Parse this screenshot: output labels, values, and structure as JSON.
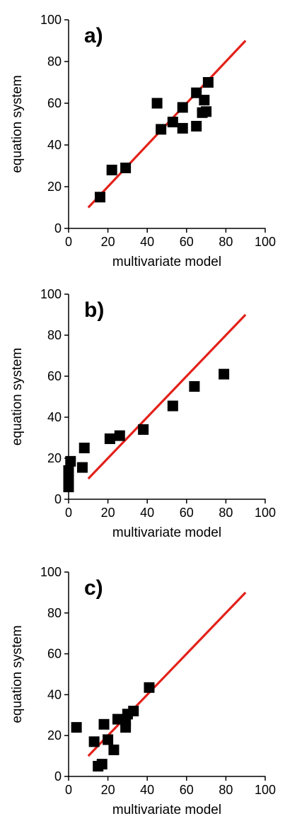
{
  "chart_data": [
    {
      "type": "scatter",
      "panel_label": "a)",
      "xlabel": "multivariate model",
      "ylabel": "equation system",
      "xlim": [
        0,
        100
      ],
      "ylim": [
        0,
        100
      ],
      "xticks": [
        "0",
        "20",
        "40",
        "60",
        "80",
        "100"
      ],
      "yticks": [
        "0",
        "20",
        "40",
        "60",
        "80",
        "100"
      ],
      "grid": false,
      "series": [
        {
          "marker": "square",
          "color": "#000000",
          "points": [
            [
              16,
              15
            ],
            [
              22,
              28
            ],
            [
              29,
              29
            ],
            [
              45,
              60
            ],
            [
              47,
              47.5
            ],
            [
              53,
              51
            ],
            [
              58,
              48
            ],
            [
              58,
              58
            ],
            [
              65,
              49
            ],
            [
              65,
              65
            ],
            [
              68,
              55.5
            ],
            [
              69,
              61.5
            ],
            [
              70,
              56
            ],
            [
              71,
              70
            ]
          ]
        }
      ],
      "reference_line": {
        "color": "#e32119",
        "from": [
          10,
          10
        ],
        "to": [
          90,
          90
        ]
      }
    },
    {
      "type": "scatter",
      "panel_label": "b)",
      "xlabel": "multivariate model",
      "ylabel": "equation system",
      "xlim": [
        0,
        100
      ],
      "ylim": [
        0,
        100
      ],
      "xticks": [
        "0",
        "20",
        "40",
        "60",
        "80",
        "100"
      ],
      "yticks": [
        "0",
        "20",
        "40",
        "60",
        "80",
        "100"
      ],
      "grid": false,
      "series": [
        {
          "marker": "square",
          "color": "#000000",
          "points": [
            [
              0,
              6
            ],
            [
              0,
              9
            ],
            [
              0,
              11
            ],
            [
              0,
              14
            ],
            [
              1,
              18.5
            ],
            [
              7,
              15.5
            ],
            [
              8,
              25
            ],
            [
              21,
              29.5
            ],
            [
              26,
              31
            ],
            [
              38,
              34
            ],
            [
              53,
              45.5
            ],
            [
              64,
              55
            ],
            [
              79,
              61
            ]
          ]
        }
      ],
      "reference_line": {
        "color": "#e32119",
        "from": [
          10,
          10
        ],
        "to": [
          90,
          90
        ]
      }
    },
    {
      "type": "scatter",
      "panel_label": "c)",
      "xlabel": "multivariate model",
      "ylabel": "equation system",
      "xlim": [
        0,
        100
      ],
      "ylim": [
        0,
        100
      ],
      "xticks": [
        "0",
        "20",
        "40",
        "60",
        "80",
        "100"
      ],
      "yticks": [
        "0",
        "20",
        "40",
        "60",
        "80",
        "100"
      ],
      "grid": false,
      "series": [
        {
          "marker": "square",
          "color": "#000000",
          "points": [
            [
              4,
              24
            ],
            [
              13,
              17
            ],
            [
              15,
              5
            ],
            [
              17,
              6
            ],
            [
              18,
              25.5
            ],
            [
              20,
              18
            ],
            [
              23,
              13
            ],
            [
              25,
              28
            ],
            [
              29,
              24
            ],
            [
              29,
              27
            ],
            [
              30,
              30.5
            ],
            [
              33,
              32
            ],
            [
              41,
              43.5
            ]
          ]
        }
      ],
      "reference_line": {
        "color": "#e32119",
        "from": [
          10,
          10
        ],
        "to": [
          90,
          90
        ]
      }
    }
  ]
}
